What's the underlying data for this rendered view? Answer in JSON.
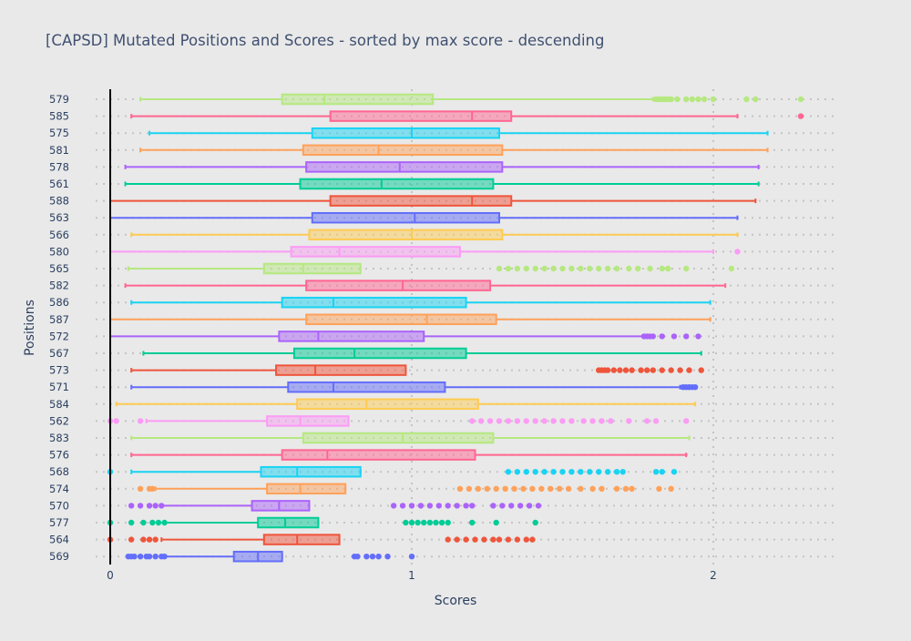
{
  "chart_data": {
    "type": "box",
    "orientation": "horizontal",
    "title": "[CAPSD] Mutated Positions and Scores - sorted by max score - descending",
    "xlabel": "Scores",
    "ylabel": "Positions",
    "xlim": [
      -0.05,
      2.42
    ],
    "xticks": [
      "0",
      "1",
      "2"
    ],
    "grid": true,
    "legend": "none",
    "series": [
      {
        "position": "579",
        "color": "#b6e880",
        "lowerfence": 0.1,
        "q1": 0.57,
        "median": 0.71,
        "q3": 1.07,
        "upperfence": 1.8,
        "outliers": [
          1.81,
          1.82,
          1.83,
          1.84,
          1.85,
          1.86,
          1.88,
          1.91,
          1.93,
          1.95,
          1.97,
          2.0,
          2.11,
          2.14,
          2.29
        ]
      },
      {
        "position": "585",
        "color": "#ff6692",
        "lowerfence": 0.07,
        "q1": 0.73,
        "median": 1.2,
        "q3": 1.33,
        "upperfence": 2.08,
        "outliers": [
          2.29
        ]
      },
      {
        "position": "575",
        "color": "#19d3f3",
        "lowerfence": 0.13,
        "q1": 0.67,
        "median": 1.0,
        "q3": 1.29,
        "upperfence": 2.18,
        "outliers": []
      },
      {
        "position": "581",
        "color": "#ffa15a",
        "lowerfence": 0.1,
        "q1": 0.64,
        "median": 0.89,
        "q3": 1.3,
        "upperfence": 2.18,
        "outliers": []
      },
      {
        "position": "578",
        "color": "#ab63fa",
        "lowerfence": 0.05,
        "q1": 0.65,
        "median": 0.96,
        "q3": 1.3,
        "upperfence": 2.15,
        "outliers": []
      },
      {
        "position": "561",
        "color": "#00cc96",
        "lowerfence": 0.05,
        "q1": 0.63,
        "median": 0.9,
        "q3": 1.27,
        "upperfence": 2.15,
        "outliers": []
      },
      {
        "position": "588",
        "color": "#ef553b",
        "lowerfence": 0.0,
        "q1": 0.73,
        "median": 1.2,
        "q3": 1.33,
        "upperfence": 2.14,
        "outliers": []
      },
      {
        "position": "563",
        "color": "#636efa",
        "lowerfence": 0.0,
        "q1": 0.67,
        "median": 1.01,
        "q3": 1.29,
        "upperfence": 2.08,
        "outliers": []
      },
      {
        "position": "566",
        "color": "#fecb52",
        "lowerfence": 0.07,
        "q1": 0.66,
        "median": 1.0,
        "q3": 1.3,
        "upperfence": 2.08,
        "outliers": []
      },
      {
        "position": "580",
        "color": "#fb9cf5",
        "lowerfence": 0.0,
        "q1": 0.6,
        "median": 0.76,
        "q3": 1.16,
        "upperfence": 2.0,
        "outliers": [
          2.08
        ]
      },
      {
        "position": "565",
        "color": "#b6e880",
        "lowerfence": 0.06,
        "q1": 0.51,
        "median": 0.64,
        "q3": 0.83,
        "upperfence": 0.83,
        "outliers": [
          1.29,
          1.32,
          1.35,
          1.38,
          1.41,
          1.44,
          1.47,
          1.5,
          1.53,
          1.56,
          1.59,
          1.62,
          1.65,
          1.68,
          1.72,
          1.75,
          1.79,
          1.83,
          1.85,
          1.91,
          2.06
        ]
      },
      {
        "position": "582",
        "color": "#ff6692",
        "lowerfence": 0.05,
        "q1": 0.65,
        "median": 0.97,
        "q3": 1.26,
        "upperfence": 2.04,
        "outliers": []
      },
      {
        "position": "586",
        "color": "#19d3f3",
        "lowerfence": 0.07,
        "q1": 0.57,
        "median": 0.74,
        "q3": 1.18,
        "upperfence": 1.99,
        "outliers": []
      },
      {
        "position": "587",
        "color": "#ffa15a",
        "lowerfence": 0.0,
        "q1": 0.65,
        "median": 1.05,
        "q3": 1.28,
        "upperfence": 1.99,
        "outliers": []
      },
      {
        "position": "572",
        "color": "#ab63fa",
        "lowerfence": 0.0,
        "q1": 0.56,
        "median": 0.69,
        "q3": 1.04,
        "upperfence": 1.77,
        "outliers": [
          1.77,
          1.78,
          1.79,
          1.8,
          1.83,
          1.87,
          1.91,
          1.95
        ]
      },
      {
        "position": "567",
        "color": "#00cc96",
        "lowerfence": 0.11,
        "q1": 0.61,
        "median": 0.81,
        "q3": 1.18,
        "upperfence": 1.96,
        "outliers": []
      },
      {
        "position": "573",
        "color": "#ef553b",
        "lowerfence": 0.07,
        "q1": 0.55,
        "median": 0.68,
        "q3": 0.98,
        "upperfence": 0.98,
        "outliers": [
          1.62,
          1.63,
          1.64,
          1.65,
          1.67,
          1.69,
          1.71,
          1.73,
          1.76,
          1.78,
          1.8,
          1.83,
          1.86,
          1.89,
          1.92,
          1.96
        ]
      },
      {
        "position": "571",
        "color": "#636efa",
        "lowerfence": 0.07,
        "q1": 0.59,
        "median": 0.74,
        "q3": 1.11,
        "upperfence": 1.89,
        "outliers": [
          1.9,
          1.91,
          1.92,
          1.93,
          1.94
        ]
      },
      {
        "position": "584",
        "color": "#fecb52",
        "lowerfence": 0.02,
        "q1": 0.62,
        "median": 0.85,
        "q3": 1.22,
        "upperfence": 1.94,
        "outliers": []
      },
      {
        "position": "562",
        "color": "#fb9cf5",
        "lowerfence": 0.12,
        "q1": 0.52,
        "median": 0.63,
        "q3": 0.79,
        "upperfence": 0.79,
        "outliers": [
          0.0,
          0.02,
          0.1,
          1.2,
          1.23,
          1.26,
          1.29,
          1.32,
          1.35,
          1.38,
          1.41,
          1.44,
          1.47,
          1.5,
          1.53,
          1.57,
          1.6,
          1.63,
          1.66,
          1.72,
          1.78,
          1.81,
          1.91
        ]
      },
      {
        "position": "583",
        "color": "#b6e880",
        "lowerfence": 0.07,
        "q1": 0.64,
        "median": 0.97,
        "q3": 1.27,
        "upperfence": 1.92,
        "outliers": []
      },
      {
        "position": "576",
        "color": "#ff6692",
        "lowerfence": 0.07,
        "q1": 0.57,
        "median": 0.72,
        "q3": 1.21,
        "upperfence": 1.91,
        "outliers": []
      },
      {
        "position": "568",
        "color": "#19d3f3",
        "lowerfence": 0.07,
        "q1": 0.5,
        "median": 0.62,
        "q3": 0.83,
        "upperfence": 0.83,
        "outliers": [
          0.0,
          1.32,
          1.35,
          1.38,
          1.41,
          1.44,
          1.47,
          1.5,
          1.53,
          1.56,
          1.59,
          1.62,
          1.65,
          1.68,
          1.7,
          1.81,
          1.83,
          1.87
        ]
      },
      {
        "position": "574",
        "color": "#ffa15a",
        "lowerfence": 0.15,
        "q1": 0.52,
        "median": 0.63,
        "q3": 0.78,
        "upperfence": 0.78,
        "outliers": [
          0.1,
          0.13,
          0.14,
          1.16,
          1.19,
          1.22,
          1.25,
          1.28,
          1.31,
          1.34,
          1.37,
          1.4,
          1.43,
          1.46,
          1.49,
          1.52,
          1.56,
          1.6,
          1.63,
          1.68,
          1.71,
          1.73,
          1.82,
          1.86
        ]
      },
      {
        "position": "570",
        "color": "#ab63fa",
        "lowerfence": 0.17,
        "q1": 0.47,
        "median": 0.56,
        "q3": 0.66,
        "upperfence": 0.66,
        "outliers": [
          0.07,
          0.1,
          0.13,
          0.15,
          0.17,
          0.94,
          0.97,
          1.0,
          1.03,
          1.06,
          1.09,
          1.12,
          1.15,
          1.18,
          1.2,
          1.27,
          1.3,
          1.33,
          1.36,
          1.39,
          1.42
        ]
      },
      {
        "position": "577",
        "color": "#00cc96",
        "lowerfence": 0.18,
        "q1": 0.49,
        "median": 0.58,
        "q3": 0.69,
        "upperfence": 0.69,
        "outliers": [
          0.0,
          0.07,
          0.11,
          0.14,
          0.16,
          0.18,
          0.98,
          1.0,
          1.02,
          1.04,
          1.06,
          1.08,
          1.1,
          1.12,
          1.2,
          1.28,
          1.41
        ]
      },
      {
        "position": "564",
        "color": "#ef553b",
        "lowerfence": 0.17,
        "q1": 0.51,
        "median": 0.62,
        "q3": 0.76,
        "upperfence": 0.76,
        "outliers": [
          0.0,
          0.07,
          0.11,
          0.13,
          0.15,
          1.12,
          1.15,
          1.18,
          1.21,
          1.24,
          1.27,
          1.29,
          1.32,
          1.35,
          1.38,
          1.4
        ]
      },
      {
        "position": "569",
        "color": "#636efa",
        "lowerfence": 0.18,
        "q1": 0.41,
        "median": 0.49,
        "q3": 0.57,
        "upperfence": 0.57,
        "outliers": [
          0.06,
          0.07,
          0.08,
          0.1,
          0.12,
          0.13,
          0.15,
          0.17,
          0.18,
          0.81,
          0.82,
          0.85,
          0.87,
          0.89,
          0.92,
          1.0
        ]
      }
    ]
  }
}
